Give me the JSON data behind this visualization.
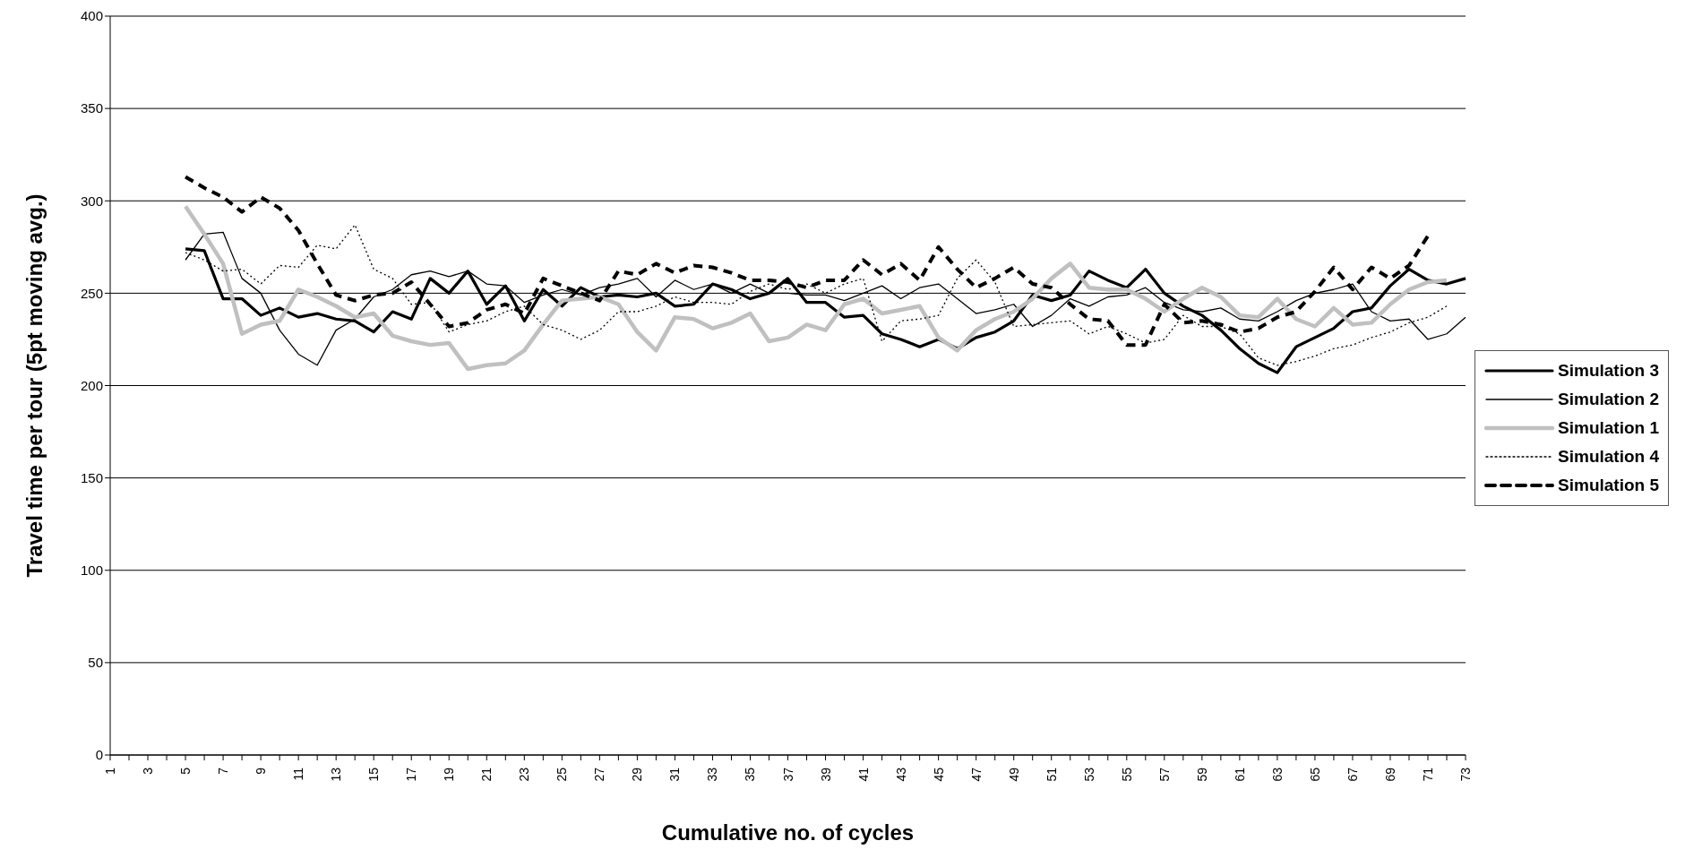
{
  "chart_data": {
    "type": "line",
    "xlabel": "Cumulative no. of cycles",
    "ylabel": "Travel time per tour (5pt moving avg.)",
    "categories": [
      "1",
      null,
      "3",
      null,
      "5",
      null,
      "7",
      null,
      "9",
      null,
      "11",
      null,
      "13",
      null,
      "15",
      null,
      "17",
      null,
      "19",
      null,
      "21",
      null,
      "23",
      null,
      "25",
      null,
      "27",
      null,
      "29",
      null,
      "31",
      null,
      "33",
      null,
      "35",
      null,
      "37",
      null,
      "39",
      null,
      "41",
      null,
      "43",
      null,
      "45",
      null,
      "47",
      null,
      "49",
      null,
      "51",
      null,
      "53",
      null,
      "55",
      null,
      "57",
      null,
      "59",
      null,
      "61",
      null,
      "63",
      null,
      "65",
      null,
      "67",
      null,
      "69",
      null,
      "71",
      null,
      "73"
    ],
    "ylim": [
      0,
      400
    ],
    "yticks": [
      0,
      50,
      100,
      150,
      200,
      250,
      300,
      350,
      400
    ],
    "grid": "y",
    "legend": "right",
    "marker": "none",
    "series": [
      {
        "name": "Simulation 3",
        "color": "#000000",
        "line_style": "solid",
        "values": [
          null,
          null,
          null,
          null,
          274,
          273,
          247,
          247,
          238,
          242,
          237,
          239,
          236,
          235,
          229,
          240,
          236,
          258,
          250,
          262,
          244,
          254,
          235,
          252,
          243,
          253,
          248,
          249,
          248,
          250,
          243,
          244,
          255,
          252,
          247,
          250,
          258,
          245,
          245,
          237,
          238,
          228,
          225,
          221,
          225,
          220,
          226,
          229,
          235,
          249,
          246,
          249,
          262,
          257,
          253,
          263,
          250,
          243,
          238,
          230,
          220,
          212,
          207,
          221,
          226,
          231,
          240,
          242,
          254,
          263,
          257,
          255,
          258
        ]
      },
      {
        "name": "Simulation 2",
        "color": "#000000",
        "line_style": "solid",
        "values": [
          null,
          null,
          null,
          null,
          268,
          282,
          283,
          258,
          250,
          230,
          217,
          211,
          230,
          236,
          248,
          252,
          260,
          262,
          259,
          262,
          255,
          254,
          245,
          249,
          252,
          249,
          253,
          255,
          258,
          248,
          257,
          252,
          255,
          250,
          255,
          250,
          250,
          249,
          249,
          246,
          250,
          254,
          247,
          253,
          255,
          247,
          239,
          241,
          244,
          232,
          238,
          247,
          243,
          248,
          249,
          253,
          245,
          241,
          240,
          242,
          236,
          235,
          240,
          246,
          250,
          252,
          255,
          240,
          235,
          236,
          225,
          228,
          237
        ]
      },
      {
        "name": "Simulation 1",
        "color": "#c0c0c0",
        "line_style": "solid",
        "values": [
          null,
          null,
          null,
          null,
          297,
          282,
          266,
          228,
          233,
          235,
          252,
          248,
          243,
          237,
          239,
          227,
          224,
          222,
          223,
          209,
          211,
          212,
          219,
          233,
          246,
          247,
          248,
          244,
          229,
          219,
          237,
          236,
          231,
          234,
          239,
          224,
          226,
          233,
          230,
          244,
          247,
          239,
          241,
          243,
          226,
          219,
          230,
          236,
          240,
          247,
          258,
          266,
          253,
          252,
          252,
          247,
          240,
          247,
          253,
          248,
          238,
          237,
          247,
          236,
          232,
          242,
          233,
          234,
          244,
          252,
          256,
          257,
          null
        ]
      },
      {
        "name": "Simulation 4",
        "color": "#000000",
        "line_style": "dotted",
        "values": [
          null,
          null,
          null,
          null,
          272,
          268,
          262,
          263,
          255,
          265,
          264,
          276,
          274,
          287,
          263,
          258,
          244,
          245,
          229,
          233,
          235,
          240,
          243,
          233,
          230,
          225,
          230,
          240,
          240,
          243,
          248,
          245,
          245,
          244,
          251,
          255,
          252,
          255,
          250,
          255,
          258,
          224,
          235,
          236,
          238,
          258,
          268,
          256,
          232,
          233,
          234,
          235,
          228,
          232,
          228,
          223,
          225,
          238,
          232,
          232,
          228,
          215,
          211,
          213,
          216,
          220,
          222,
          226,
          229,
          234,
          237,
          243,
          null
        ]
      },
      {
        "name": "Simulation 5",
        "color": "#000000",
        "line_style": "dashed",
        "values": [
          null,
          null,
          null,
          null,
          313,
          307,
          302,
          294,
          302,
          296,
          284,
          266,
          249,
          246,
          249,
          250,
          256,
          244,
          232,
          234,
          241,
          244,
          239,
          258,
          254,
          250,
          246,
          262,
          260,
          266,
          261,
          265,
          264,
          261,
          257,
          257,
          256,
          253,
          257,
          257,
          268,
          260,
          266,
          257,
          275,
          263,
          253,
          258,
          264,
          255,
          253,
          244,
          236,
          235,
          222,
          222,
          244,
          234,
          235,
          233,
          229,
          231,
          237,
          240,
          251,
          264,
          252,
          264,
          258,
          265,
          281,
          null,
          null
        ]
      }
    ]
  }
}
